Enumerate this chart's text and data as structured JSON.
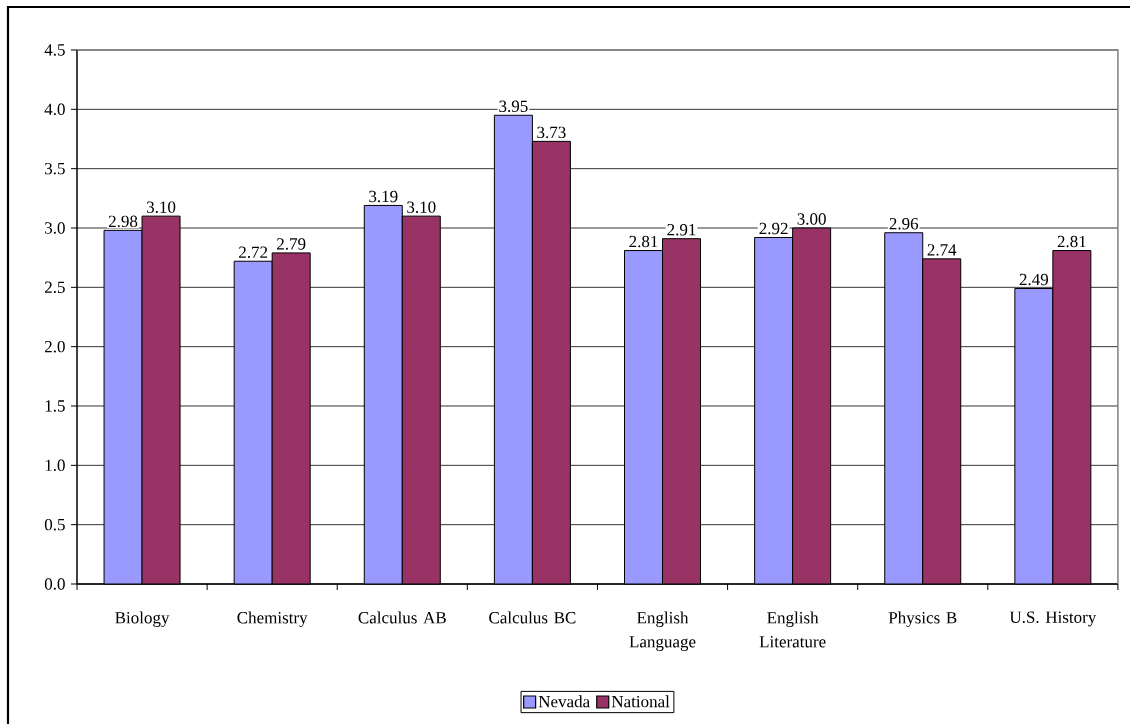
{
  "chart_data": {
    "type": "bar",
    "categories": [
      "Biology",
      "Chemistry",
      "Calculus AB",
      "Calculus BC",
      "English Language",
      "English Literature",
      "Physics B",
      "U.S. History"
    ],
    "series": [
      {
        "name": "Nevada",
        "color": "#9999ff",
        "values": [
          2.98,
          2.72,
          3.19,
          3.95,
          2.81,
          2.92,
          2.96,
          2.49
        ],
        "value_labels": [
          "2.98",
          "2.72",
          "3.19",
          "3.95",
          "2.81",
          "2.92",
          "2.96",
          "2.49"
        ]
      },
      {
        "name": "National",
        "color": "#993366",
        "values": [
          3.1,
          2.79,
          3.1,
          3.73,
          2.91,
          3.0,
          2.74,
          2.81
        ],
        "value_labels": [
          "3.10",
          "2.79",
          "3.10",
          "3.73",
          "2.91",
          "3.00",
          "2.74",
          "2.81"
        ]
      }
    ],
    "ylim": [
      0,
      4.5
    ],
    "yticks": [
      {
        "value": 0,
        "label": "0.0"
      },
      0.5,
      {
        "value": 1,
        "label": "1.0"
      },
      1.5,
      {
        "value": 2,
        "label": "2.0"
      },
      2.5,
      {
        "value": 3,
        "label": "3.0"
      },
      3.5,
      {
        "value": 4,
        "label": "4.0"
      },
      4.5
    ],
    "grid": "y",
    "legend": "bottom"
  }
}
